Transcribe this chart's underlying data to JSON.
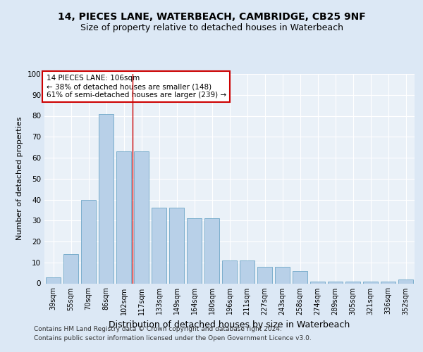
{
  "title": "14, PIECES LANE, WATERBEACH, CAMBRIDGE, CB25 9NF",
  "subtitle": "Size of property relative to detached houses in Waterbeach",
  "xlabel": "Distribution of detached houses by size in Waterbeach",
  "ylabel": "Number of detached properties",
  "categories": [
    "39sqm",
    "55sqm",
    "70sqm",
    "86sqm",
    "102sqm",
    "117sqm",
    "133sqm",
    "149sqm",
    "164sqm",
    "180sqm",
    "196sqm",
    "211sqm",
    "227sqm",
    "243sqm",
    "258sqm",
    "274sqm",
    "289sqm",
    "305sqm",
    "321sqm",
    "336sqm",
    "352sqm"
  ],
  "values": [
    3,
    14,
    40,
    81,
    63,
    63,
    36,
    36,
    31,
    31,
    11,
    11,
    8,
    8,
    6,
    1,
    1,
    1,
    1,
    1,
    2
  ],
  "bar_color": "#b8d0e8",
  "bar_edge_color": "#5a9abf",
  "vline_x": 4.5,
  "vline_color": "#cc0000",
  "annotation_title": "14 PIECES LANE: 106sqm",
  "annotation_line1": "← 38% of detached houses are smaller (148)",
  "annotation_line2": "61% of semi-detached houses are larger (239) →",
  "annotation_box_color": "#ffffff",
  "annotation_box_edge": "#cc0000",
  "ylim": [
    0,
    100
  ],
  "yticks": [
    0,
    10,
    20,
    30,
    40,
    50,
    60,
    70,
    80,
    90,
    100
  ],
  "footer1": "Contains HM Land Registry data © Crown copyright and database right 2024.",
  "footer2": "Contains public sector information licensed under the Open Government Licence v3.0.",
  "bg_color": "#dce8f5",
  "plot_bg_color": "#eaf1f8",
  "title_fontsize": 10,
  "subtitle_fontsize": 9,
  "tick_fontsize": 7,
  "ylabel_fontsize": 8,
  "xlabel_fontsize": 9,
  "annotation_fontsize": 7.5,
  "footer_fontsize": 6.5
}
